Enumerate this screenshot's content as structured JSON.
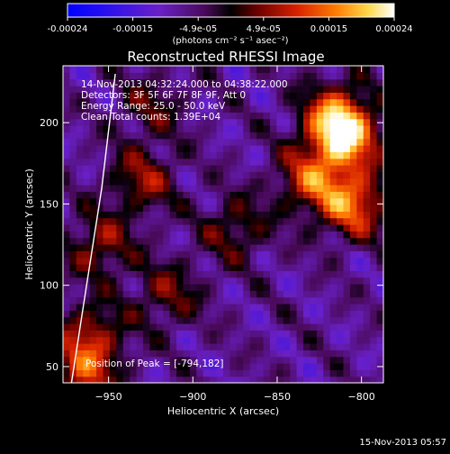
{
  "chart_data": {
    "type": "heatmap",
    "title": "Reconstructed RHESSI Image",
    "xlabel": "Heliocentric X (arcsec)",
    "ylabel": "Heliocentric Y (arcsec)",
    "xlim": [
      -977,
      -787
    ],
    "ylim": [
      40,
      235
    ],
    "x_ticks": [
      -950,
      -900,
      -850,
      -800
    ],
    "y_ticks": [
      50,
      100,
      150,
      200
    ],
    "colorbar": {
      "min": -0.00024,
      "max": 0.00024,
      "ticks": [
        "-0.00024",
        "-0.00015",
        "-4.9e-05",
        "4.9e-05",
        "0.00015",
        "0.00024"
      ],
      "unit_label": "(photons cm⁻² s⁻¹ asec⁻²)",
      "colors": [
        "#0000ff",
        "#3a0fe0",
        "#7a1fb0",
        "#5a0000",
        "#c21a00",
        "#ff4a00",
        "#ffae00",
        "#ffff80",
        "#ffffff"
      ]
    },
    "annotations": {
      "time_range": "14-Nov-2013 04:32:24.000 to 04:38:22.000",
      "detectors": "Detectors: 3F 5F 6F 7F 8F 9F, Att 0",
      "energy_range": "Energy Range: 25.0 - 50.0 keV",
      "method": "Clean  Total counts: 1.39E+04",
      "peak": "Position of Peak = [-794,182]"
    },
    "limb_curve": [
      [
        -972,
        40
      ],
      [
        -963,
        100
      ],
      [
        -954,
        160
      ],
      [
        -946,
        230
      ]
    ],
    "emission_regions": [
      {
        "x": -810,
        "y": 190,
        "intensity": 0.00022
      },
      {
        "x": -805,
        "y": 150,
        "intensity": 0.0002
      },
      {
        "x": -815,
        "y": 205,
        "intensity": 0.00018
      },
      {
        "x": -830,
        "y": 165,
        "intensity": 0.00016
      },
      {
        "x": -955,
        "y": 125,
        "intensity": 0.00012
      },
      {
        "x": -960,
        "y": 70,
        "intensity": 0.00013
      },
      {
        "x": -965,
        "y": 45,
        "intensity": 0.00015
      },
      {
        "x": -930,
        "y": 165,
        "intensity": 0.00012
      },
      {
        "x": -915,
        "y": 95,
        "intensity": 0.0001
      },
      {
        "x": -875,
        "y": 135,
        "intensity": 0.0001
      },
      {
        "x": -925,
        "y": 210,
        "intensity": 8e-05
      }
    ]
  },
  "footer": {
    "date": "15-Nov-2013 05:57"
  }
}
